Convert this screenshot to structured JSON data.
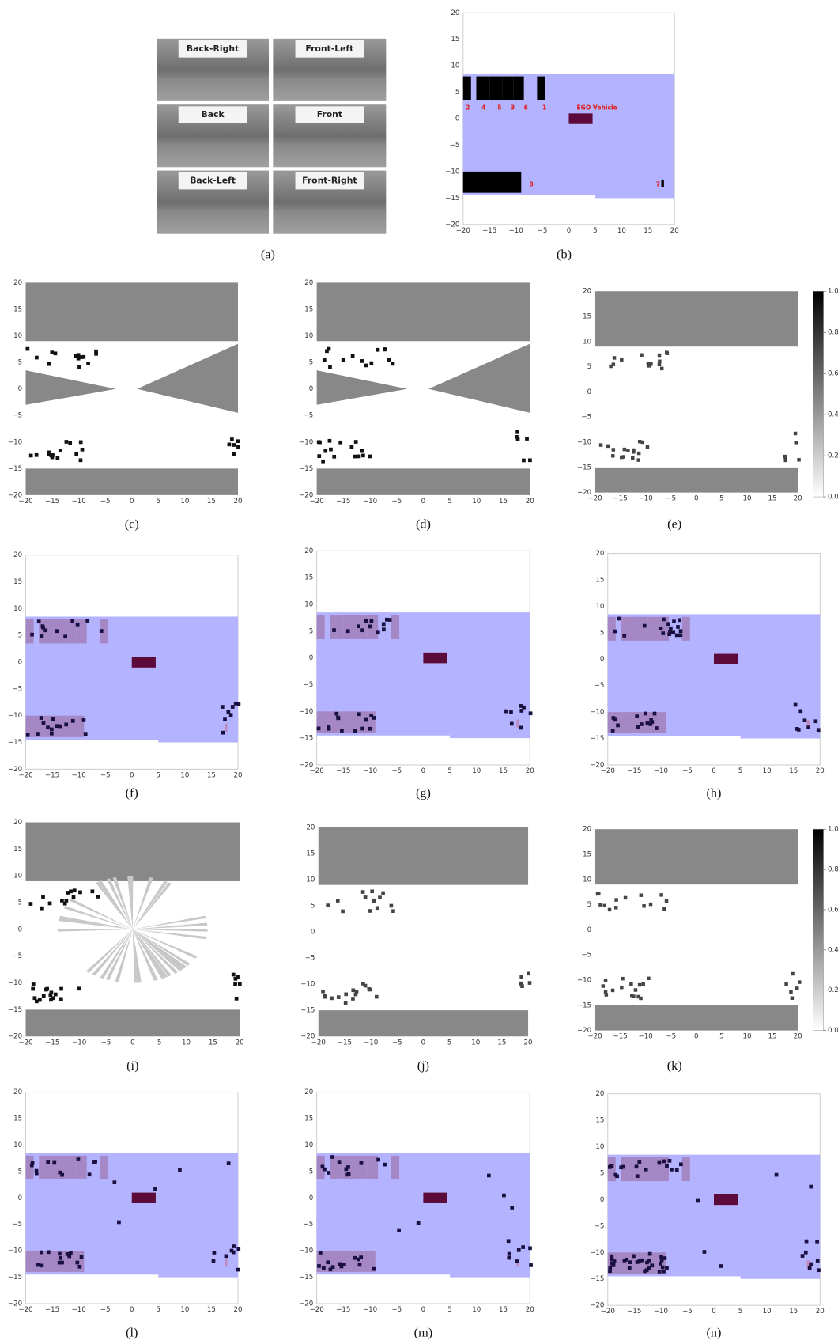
{
  "axes": {
    "xlim": [
      -20,
      20
    ],
    "ylim": [
      -20,
      20
    ],
    "ticks": [
      {
        "value": -20,
        "label": "−20"
      },
      {
        "value": -15,
        "label": "−15"
      },
      {
        "value": -10,
        "label": "−10"
      },
      {
        "value": -5,
        "label": "−5"
      },
      0,
      5,
      10,
      15,
      20
    ]
  },
  "colorbar": {
    "ticks": [
      {
        "value": 0,
        "label": "0.0"
      },
      0.2,
      0.4,
      0.6,
      0.8,
      {
        "value": 1,
        "label": "1.0"
      }
    ]
  },
  "cameras": [
    "Back-Right",
    "Front-Left",
    "Back",
    "Front",
    "Back-Left",
    "Front-Right"
  ],
  "scene_labels": [
    "2",
    "4",
    "5",
    "3",
    "6",
    "1",
    "EGO Vehicle",
    "8",
    "7"
  ],
  "panels": [
    {
      "caption": "(a)"
    },
    {
      "caption": "(b)"
    },
    {
      "caption": "(c)"
    },
    {
      "caption": "(d)"
    },
    {
      "caption": "(e)"
    },
    {
      "caption": "(f)"
    },
    {
      "caption": "(g)"
    },
    {
      "caption": "(h)"
    },
    {
      "caption": "(i)"
    },
    {
      "caption": "(j)"
    },
    {
      "caption": "(k)"
    },
    {
      "caption": "(l)"
    },
    {
      "caption": "(m)"
    },
    {
      "caption": "(n)"
    }
  ]
}
